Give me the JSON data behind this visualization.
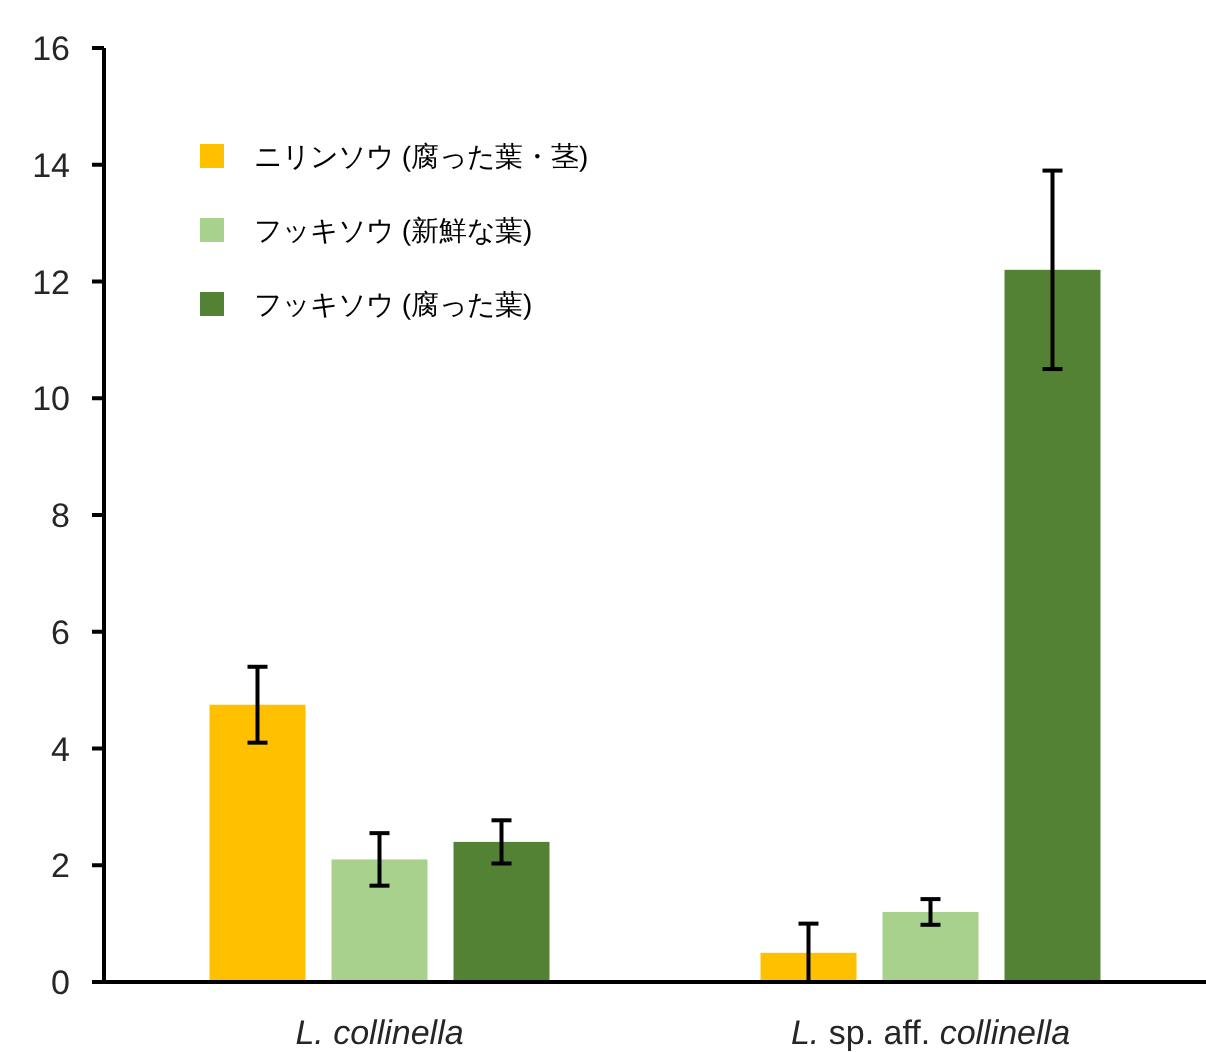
{
  "chart_data": {
    "type": "bar",
    "categories": [
      "L. collinella",
      "L. sp. aff. collinella"
    ],
    "series": [
      {
        "name": "ニリンソウ (腐った葉・茎)",
        "color": "#ffc000",
        "values": [
          4.75,
          0.5
        ],
        "errors": [
          0.65,
          0.5
        ]
      },
      {
        "name": "フッキソウ (新鮮な葉)",
        "color": "#a9d18e",
        "values": [
          2.1,
          1.2
        ],
        "errors": [
          0.45,
          0.22
        ]
      },
      {
        "name": "フッキソウ (腐った葉)",
        "color": "#548235",
        "values": [
          2.4,
          12.2
        ],
        "errors": [
          0.37,
          1.7
        ]
      }
    ],
    "ylim": [
      0,
      16
    ],
    "yticks": [
      0,
      2,
      4,
      6,
      8,
      10,
      12,
      14,
      16
    ],
    "grid": false,
    "legend": "top left"
  }
}
